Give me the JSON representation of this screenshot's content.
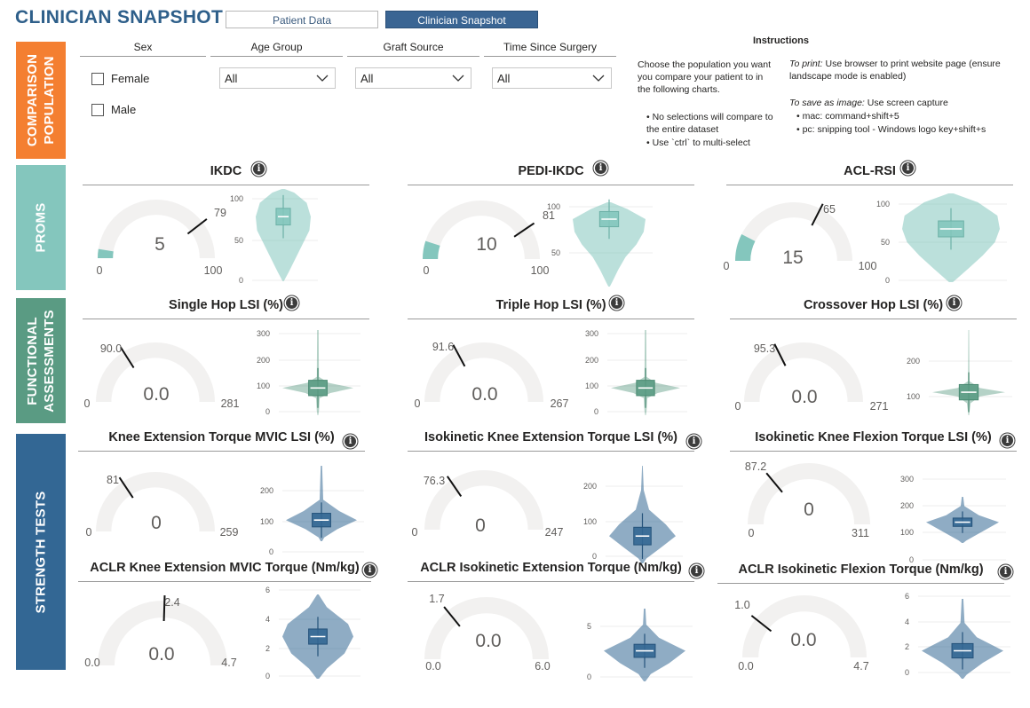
{
  "header": {
    "title": "CLINICIAN SNAPSHOT",
    "tabs": [
      {
        "label": "Patient Data",
        "active": false
      },
      {
        "label": "Clinician Snapshot",
        "active": true
      }
    ]
  },
  "sections": {
    "comparison": {
      "label_lines": [
        "COMPARISON",
        "POPULATION"
      ],
      "color": "#f47f31"
    },
    "proms": {
      "label_lines": [
        "PROMS"
      ],
      "color": "#84c6bd"
    },
    "functional": {
      "label_lines": [
        "FUNCTIONAL",
        "ASSESSMENTS"
      ],
      "color": "#5a9b83"
    },
    "strength": {
      "label_lines": [
        "STRENGTH TESTS"
      ],
      "color": "#336794"
    }
  },
  "filters": {
    "sex": {
      "label": "Sex",
      "options": [
        {
          "label": "Female",
          "checked": false
        },
        {
          "label": "Male",
          "checked": false
        }
      ]
    },
    "age_group": {
      "label": "Age Group",
      "value": "All"
    },
    "graft_source": {
      "label": "Graft Source",
      "value": "All"
    },
    "time_since_surgery": {
      "label": "Time Since Surgery",
      "value": "All"
    }
  },
  "instructions": {
    "title": "Instructions",
    "left_text": "Choose the population you want you compare your patient to in the following charts.",
    "bullets": [
      "No selections will compare to the entire dataset",
      "Use `ctrl` to multi-select"
    ],
    "print_label": "To print:",
    "print_text": " Use browser to print website page (ensure landscape mode is enabled)",
    "save_label": "To save as image:",
    "save_text": " Use screen capture",
    "save_bullets": [
      "mac: command+shift+5",
      "pc: snipping tool - Windows logo key+shift+s"
    ]
  },
  "colors": {
    "teal": "#84c6bd",
    "green": "#5a9b83",
    "blue": "#336794",
    "gauge_bg": "#f2f1f0"
  },
  "panels": [
    {
      "title": "IKDC",
      "gauge": {
        "value": "5",
        "min": "0",
        "max": "100",
        "target": "79"
      },
      "violin_ticks": [
        "100",
        "50",
        "0"
      ]
    },
    {
      "title": "PEDI-IKDC",
      "gauge": {
        "value": "10",
        "min": "0",
        "max": "100",
        "target": "81"
      },
      "violin_ticks": [
        "100",
        "50"
      ]
    },
    {
      "title": "ACL-RSI",
      "gauge": {
        "value": "15",
        "min": "0",
        "max": "100",
        "target": "65"
      },
      "violin_ticks": [
        "100",
        "50",
        "0"
      ]
    },
    {
      "title": "Single Hop LSI (%)",
      "gauge": {
        "value": "0.0",
        "min": "0",
        "max": "281",
        "target": "90.0"
      },
      "violin_ticks": [
        "300",
        "200",
        "100",
        "0"
      ]
    },
    {
      "title": "Triple Hop LSI (%)",
      "gauge": {
        "value": "0.0",
        "min": "0",
        "max": "267",
        "target": "91.6"
      },
      "violin_ticks": [
        "300",
        "200",
        "100",
        "0"
      ]
    },
    {
      "title": "Crossover Hop LSI (%)",
      "gauge": {
        "value": "0.0",
        "min": "0",
        "max": "271",
        "target": "95.3"
      },
      "violin_ticks": [
        "200",
        "100"
      ]
    },
    {
      "title": "Knee Extension Torque MVIC LSI (%)",
      "gauge": {
        "value": "0",
        "min": "0",
        "max": "259",
        "target": "81"
      },
      "violin_ticks": [
        "200",
        "100",
        "0"
      ]
    },
    {
      "title": "Isokinetic Knee Extension Torque LSI (%)",
      "gauge": {
        "value": "0",
        "min": "0",
        "max": "247",
        "target": "76.3"
      },
      "violin_ticks": [
        "200",
        "100",
        "0"
      ]
    },
    {
      "title": "Isokinetic Knee Flexion Torque LSI (%)",
      "gauge": {
        "value": "0",
        "min": "0",
        "max": "311",
        "target": "87.2"
      },
      "violin_ticks": [
        "300",
        "200",
        "100",
        "0"
      ]
    },
    {
      "title": "ACLR Knee Extension MVIC Torque (Nm/kg)",
      "gauge": {
        "value": "0.0",
        "min": "0.0",
        "max": "4.7",
        "target": "2.4"
      },
      "violin_ticks": [
        "6",
        "4",
        "2",
        "0"
      ]
    },
    {
      "title": "ACLR Isokinetic Extension Torque (Nm/kg)",
      "gauge": {
        "value": "0.0",
        "min": "0.0",
        "max": "6.0",
        "target": "1.7"
      },
      "violin_ticks": [
        "5",
        "0"
      ]
    },
    {
      "title": "ACLR Isokinetic Flexion Torque (Nm/kg)",
      "gauge": {
        "value": "0.0",
        "min": "0.0",
        "max": "4.7",
        "target": "1.0"
      },
      "violin_ticks": [
        "6",
        "4",
        "2",
        "0"
      ]
    }
  ]
}
